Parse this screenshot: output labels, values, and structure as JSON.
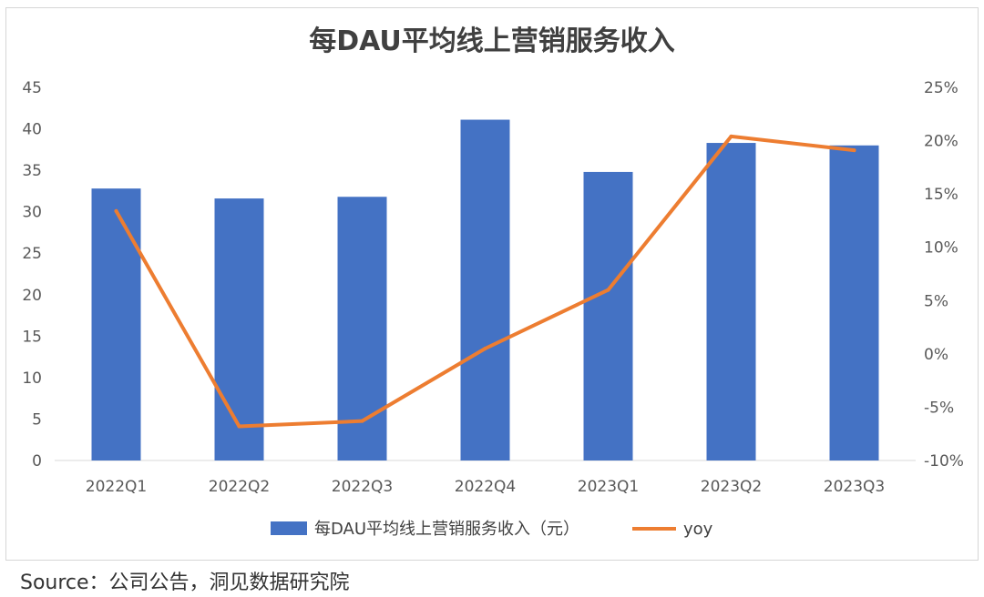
{
  "chart_data": {
    "type": "bar",
    "title": "每DAU平均线上营销服务收入",
    "categories": [
      "2022Q1",
      "2022Q2",
      "2022Q3",
      "2022Q4",
      "2023Q1",
      "2023Q2",
      "2023Q3"
    ],
    "series": [
      {
        "name": "每DAU平均线上营销服务收入（元）",
        "type": "bar",
        "axis": "left",
        "color": "#4472c4",
        "values": [
          32.8,
          31.6,
          31.8,
          41.1,
          34.8,
          38.3,
          38.0
        ]
      },
      {
        "name": "yoy",
        "type": "line",
        "axis": "right",
        "color": "#ed7d31",
        "values": [
          13.4,
          -6.8,
          -6.3,
          0.5,
          6.0,
          20.4,
          19.1
        ]
      }
    ],
    "left_axis": {
      "ylim": [
        0,
        45
      ],
      "ticks": [
        "0",
        "5",
        "10",
        "15",
        "20",
        "25",
        "30",
        "35",
        "40",
        "45"
      ]
    },
    "right_axis": {
      "ylim": [
        -10,
        25
      ],
      "unit": "%",
      "ticks": [
        "-10%",
        "-5%",
        "0%",
        "5%",
        "10%",
        "15%",
        "20%",
        "25%"
      ]
    },
    "grid": false,
    "legend_position": "bottom"
  },
  "source": "Source：公司公告，洞见数据研究院"
}
